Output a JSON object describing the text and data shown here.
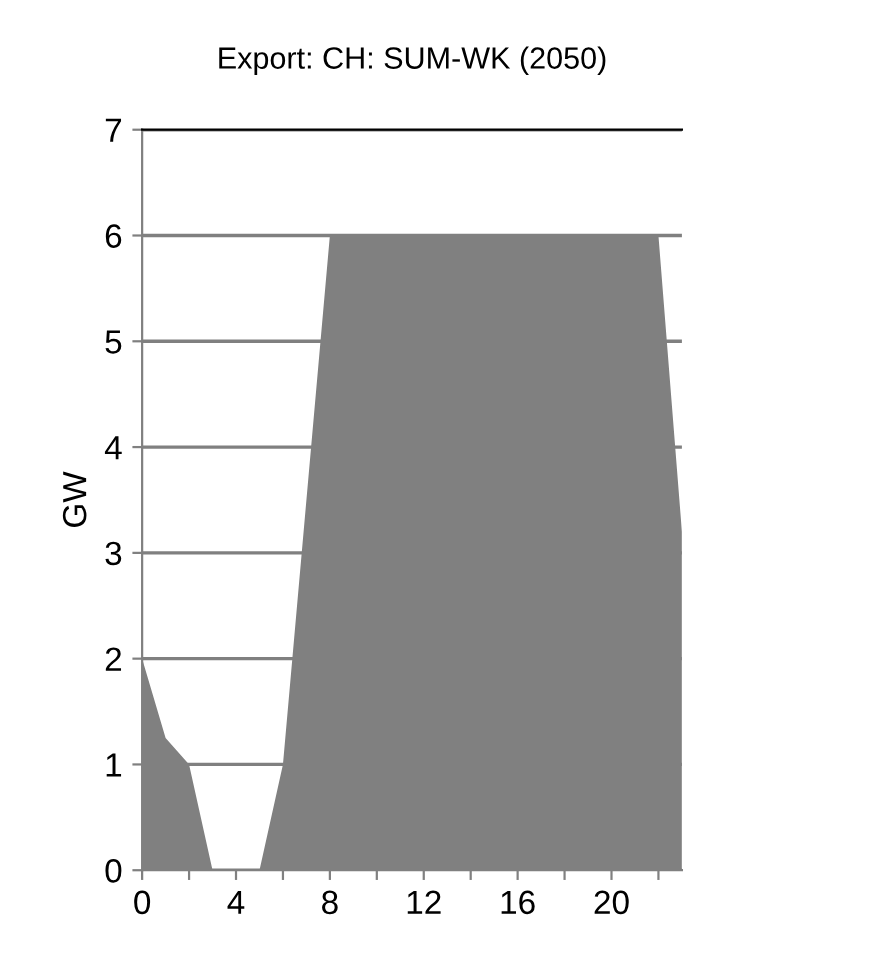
{
  "chart_data": {
    "type": "area",
    "title": "Export: CH: SUM-WK (2050)",
    "ylabel": "GW",
    "x": [
      0,
      1,
      2,
      3,
      4,
      5,
      6,
      7,
      8,
      9,
      10,
      11,
      12,
      13,
      14,
      15,
      16,
      17,
      18,
      19,
      20,
      21,
      22,
      23
    ],
    "series": [
      {
        "color": "#808080",
        "values": [
          2,
          1.25,
          1,
          0,
          0,
          0,
          1,
          3.5,
          6,
          6,
          6,
          6,
          6,
          6,
          6,
          6,
          6,
          6,
          6,
          6,
          6,
          6,
          6,
          3.2
        ]
      }
    ],
    "xlim": [
      0,
      23
    ],
    "xticks": [
      0,
      {
        "value": 2,
        "label": null
      },
      4,
      {
        "value": 6,
        "label": null
      },
      8,
      {
        "value": 10,
        "label": null
      },
      12,
      {
        "value": 14,
        "label": null
      },
      16,
      {
        "value": 18,
        "label": null
      },
      20,
      {
        "value": 22,
        "label": null
      }
    ],
    "ylim": [
      0,
      7
    ],
    "yticks": [
      0,
      1,
      2,
      3,
      4,
      5,
      6,
      7
    ],
    "grid": "y",
    "legend": false
  }
}
